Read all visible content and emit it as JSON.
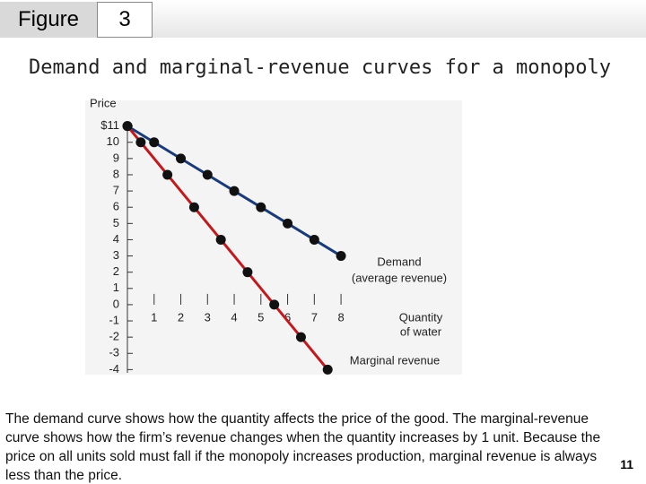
{
  "header": {
    "label": "Figure",
    "number": "3"
  },
  "chart_data": {
    "type": "line",
    "title": "Demand and marginal-revenue curves for a monopoly",
    "y_label": "Price",
    "x_label_lines": [
      "Quantity",
      "of water"
    ],
    "xlim": [
      0,
      12.5
    ],
    "ylim": [
      -4.2,
      11.2
    ],
    "xticks": [
      1,
      2,
      3,
      4,
      5,
      6,
      7,
      8
    ],
    "yticks": [
      {
        "value": 11,
        "label": "$11"
      },
      10,
      9,
      8,
      7,
      6,
      5,
      4,
      3,
      2,
      1,
      0,
      -1,
      -2,
      -3,
      -4
    ],
    "series": [
      {
        "name": "Demand",
        "subname": "(average revenue)",
        "color": "#1b3b78",
        "x": [
          0,
          1,
          2,
          3,
          4,
          5,
          6,
          7,
          8
        ],
        "values": [
          11,
          10,
          9,
          8,
          7,
          6,
          5,
          4,
          3
        ]
      },
      {
        "name": "Marginal revenue",
        "color": "#c01a1e",
        "x": [
          0,
          0.5,
          1.5,
          2.5,
          3.5,
          4.5,
          5.5,
          6.5,
          7.5
        ],
        "values": [
          11,
          10,
          8,
          6,
          4,
          2,
          0,
          -2,
          -4
        ]
      }
    ]
  },
  "caption": "The demand curve shows how the quantity affects the price of the good. The marginal-revenue curve shows how the firm’s revenue changes when the quantity increases by 1 unit. Because the price on all units sold must fall if the monopoly increases production, marginal revenue is always less than the price.",
  "page_number": "11"
}
